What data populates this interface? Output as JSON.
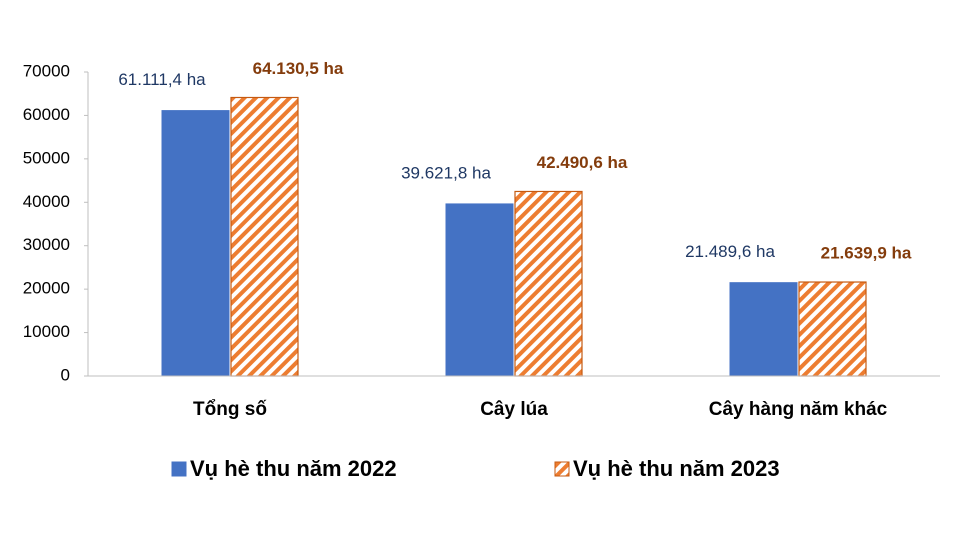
{
  "chart_data": {
    "type": "bar",
    "categories": [
      "Tổng số",
      "Cây lúa",
      "Cây hàng năm khác"
    ],
    "series": [
      {
        "name": "Vụ hè thu năm 2022",
        "color": "#4472c4",
        "label_color": "#1f3864",
        "values": [
          61111.4,
          39621.8,
          21489.6
        ],
        "value_labels": [
          "61.111,4 ha",
          "39.621,8 ha",
          "21.489,6 ha"
        ]
      },
      {
        "name": "Vụ hè thu năm 2023",
        "color": "#ed7d31",
        "label_color": "#843c0c",
        "pattern": "diagonal-stripes",
        "values": [
          64130.5,
          42490.6,
          21639.9
        ],
        "value_labels": [
          "64.130,5 ha",
          "42.490,6 ha",
          "21.639,9 ha"
        ]
      }
    ],
    "ylim": [
      0,
      70000
    ],
    "yticks": [
      0,
      10000,
      20000,
      30000,
      40000,
      50000,
      60000,
      70000
    ],
    "grid": false,
    "legend": "bottom"
  }
}
